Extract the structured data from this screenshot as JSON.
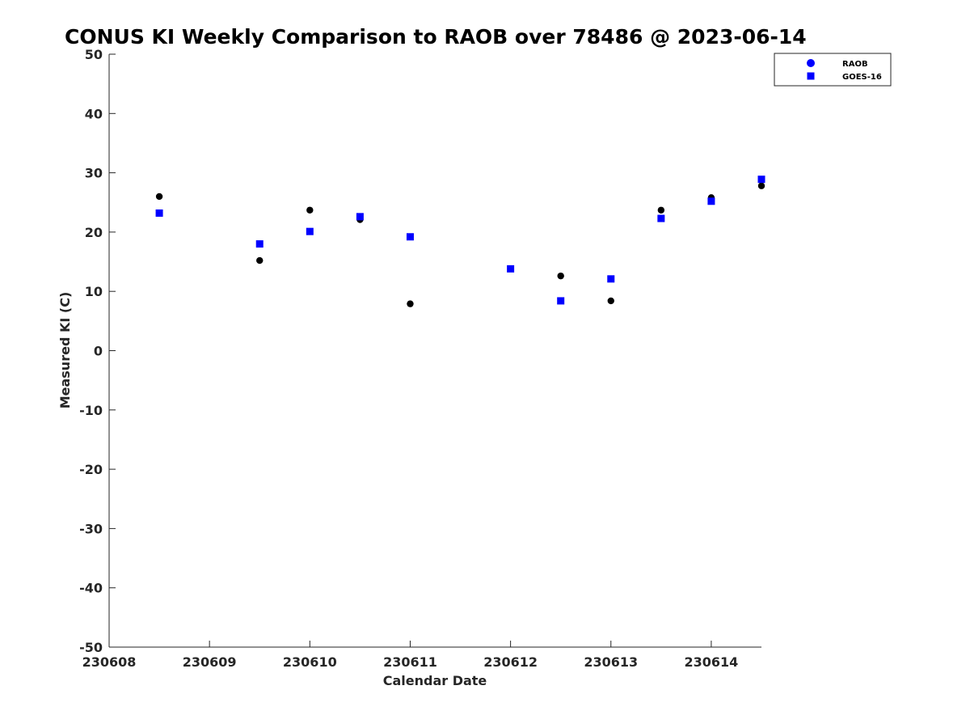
{
  "chart_data": {
    "type": "scatter",
    "title": "CONUS KI Weekly Comparison to RAOB over 78486 @ 2023-06-14",
    "xlabel": "Calendar Date",
    "ylabel": "Measured KI (C)",
    "xlim": [
      "2023-06-08",
      "2023-06-14T12:00"
    ],
    "ylim": [
      -50,
      50
    ],
    "x_ticks": [
      {
        "value": "2023-06-08",
        "label": "230608"
      },
      {
        "value": "2023-06-09",
        "label": "230609"
      },
      {
        "value": "2023-06-10",
        "label": "230610"
      },
      {
        "value": "2023-06-11",
        "label": "230611"
      },
      {
        "value": "2023-06-12",
        "label": "230612"
      },
      {
        "value": "2023-06-13",
        "label": "230613"
      },
      {
        "value": "2023-06-14",
        "label": "230614"
      }
    ],
    "y_ticks": [
      50,
      40,
      30,
      20,
      10,
      0,
      -10,
      -20,
      -30,
      -40,
      -50
    ],
    "y_tick_labels": [
      "50",
      "40",
      "30",
      "20",
      "10",
      "0",
      "-10",
      "-20",
      "-30",
      "-40",
      "-50"
    ],
    "grid": false,
    "legend": {
      "position": "top-right"
    },
    "series": [
      {
        "name": "RAOB",
        "marker": "circle",
        "color": "#000000",
        "legend_color": "#0000ff",
        "points": [
          {
            "x": "2023-06-08T12:00",
            "y": 26.0
          },
          {
            "x": "2023-06-09T12:00",
            "y": 15.2
          },
          {
            "x": "2023-06-10T00:00",
            "y": 23.7
          },
          {
            "x": "2023-06-10T12:00",
            "y": 22.1
          },
          {
            "x": "2023-06-11T00:00",
            "y": 7.9
          },
          {
            "x": "2023-06-12T00:00",
            "y": 13.8
          },
          {
            "x": "2023-06-12T12:00",
            "y": 12.6
          },
          {
            "x": "2023-06-13T00:00",
            "y": 8.4
          },
          {
            "x": "2023-06-13T12:00",
            "y": 23.7
          },
          {
            "x": "2023-06-14T00:00",
            "y": 25.8
          },
          {
            "x": "2023-06-14T12:00",
            "y": 27.8
          }
        ]
      },
      {
        "name": "GOES-16",
        "marker": "square",
        "color": "#0000ff",
        "legend_color": "#0000ff",
        "points": [
          {
            "x": "2023-06-08T12:00",
            "y": 23.2
          },
          {
            "x": "2023-06-09T12:00",
            "y": 18.0
          },
          {
            "x": "2023-06-10T00:00",
            "y": 20.1
          },
          {
            "x": "2023-06-10T12:00",
            "y": 22.6
          },
          {
            "x": "2023-06-11T00:00",
            "y": 19.2
          },
          {
            "x": "2023-06-12T00:00",
            "y": 13.8
          },
          {
            "x": "2023-06-12T12:00",
            "y": 8.4
          },
          {
            "x": "2023-06-13T00:00",
            "y": 12.1
          },
          {
            "x": "2023-06-13T12:00",
            "y": 22.3
          },
          {
            "x": "2023-06-14T00:00",
            "y": 25.2
          },
          {
            "x": "2023-06-14T12:00",
            "y": 28.9
          }
        ]
      }
    ]
  }
}
